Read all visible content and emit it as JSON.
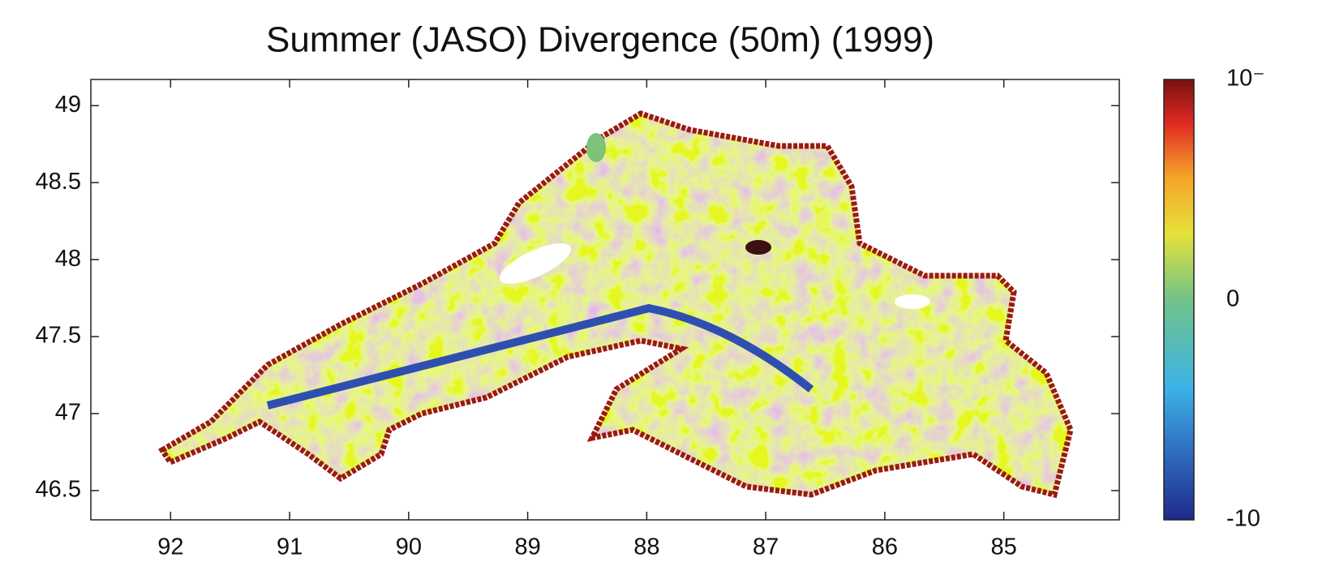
{
  "chart_data": {
    "type": "map",
    "title": "Summer (JASO) Divergence (50m) (1999)",
    "xlim": [
      92.67,
      84.03
    ],
    "xticks": [
      92,
      91,
      90,
      89,
      88,
      87,
      86,
      85
    ],
    "ylim": [
      46.31,
      49.17
    ],
    "yticks": [
      46.5,
      47,
      47.5,
      48,
      48.5,
      49
    ],
    "colorbar_labels": [
      "10⁻",
      "0",
      "-10"
    ]
  }
}
